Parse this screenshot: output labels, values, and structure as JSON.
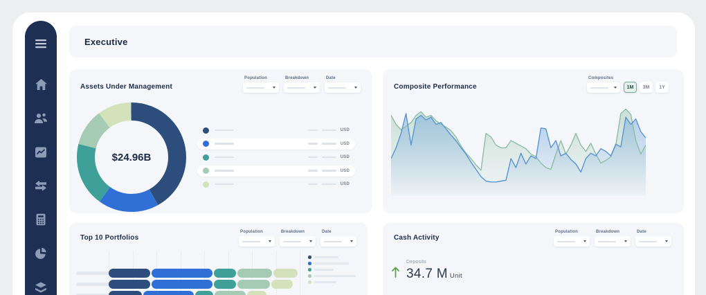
{
  "header": {
    "title": "Executive"
  },
  "palette": {
    "sidebar_bg": "#1d3054",
    "sidebar_icon": "#8c9cb6",
    "card_bg": "#f4f6f9",
    "title_text": "#1c2c49",
    "skeleton": "#dde2ea",
    "selected_chip_bg": "#e7f1ec",
    "selected_chip_border": "#76a996",
    "series_navy": "#2d4e7d",
    "series_blue": "#306fd6",
    "series_teal": "#3fa099",
    "series_sage": "#a5cbb5",
    "series_pale_green": "#d3e2ba",
    "line_blue": "#5795d2",
    "line_green": "#8cbda6",
    "deposit_green": "#57a744"
  },
  "sidebar": {
    "items": [
      {
        "icon": "menu"
      },
      {
        "icon": "home"
      },
      {
        "icon": "users"
      },
      {
        "icon": "report-chart"
      },
      {
        "icon": "transfer-arrows"
      },
      {
        "icon": "calculator"
      },
      {
        "icon": "pie-chart"
      },
      {
        "icon": "layers"
      }
    ]
  },
  "cards": {
    "aum": {
      "title": "Assets Under Management",
      "filters": [
        {
          "label": "Population"
        },
        {
          "label": "Breakdown"
        },
        {
          "label": "Date"
        }
      ],
      "legend": {
        "currency": "USD",
        "rows": [
          {
            "color": "#2d4e7d"
          },
          {
            "color": "#306fd6"
          },
          {
            "color": "#3fa099"
          },
          {
            "color": "#a5cbb5"
          },
          {
            "color": "#d3e2ba"
          }
        ]
      }
    },
    "composite": {
      "title": "Composite Performance",
      "filters": [
        {
          "label": "Composites"
        }
      ],
      "range_buttons": [
        {
          "label": "1M",
          "selected": true
        },
        {
          "label": "3M",
          "selected": false
        },
        {
          "label": "1Y",
          "selected": false
        }
      ]
    },
    "top10": {
      "title": "Top 10 Portfolios",
      "filters": [
        {
          "label": "Population"
        },
        {
          "label": "Breakdown"
        },
        {
          "label": "Date"
        }
      ],
      "legend_bar_widths": [
        35,
        50,
        28,
        60,
        32
      ]
    },
    "cash": {
      "title": "Cash Activity",
      "filters": [
        {
          "label": "Population"
        },
        {
          "label": "Breakdown"
        },
        {
          "label": "Date"
        }
      ],
      "metric": {
        "label": "Deposits",
        "value": "34.7 M",
        "unit": "Unit",
        "direction": "up"
      }
    }
  },
  "chart_data": [
    {
      "card": "assets_under_management",
      "type": "pie",
      "subtype": "donut",
      "center_label": "$24.96B",
      "values_are_estimated_percent": true,
      "slices": [
        {
          "name": "slice-1",
          "color": "#2d4e7d",
          "value": 42
        },
        {
          "name": "slice-2",
          "color": "#306fd6",
          "value": 18
        },
        {
          "name": "slice-3",
          "color": "#3fa099",
          "value": 19
        },
        {
          "name": "slice-4",
          "color": "#a5cbb5",
          "value": 11
        },
        {
          "name": "slice-5",
          "color": "#d3e2ba",
          "value": 10
        }
      ]
    },
    {
      "card": "composite_performance",
      "type": "area",
      "x_points": 52,
      "ylim": [
        0,
        100
      ],
      "grid": false,
      "legend": "none",
      "range_selected": "1M",
      "series": [
        {
          "name": "composite-series-green",
          "color": "#8cbda6",
          "fill": "#a9cdb9",
          "values": [
            88,
            78,
            72,
            76,
            80,
            88,
            92,
            86,
            88,
            82,
            78,
            75,
            71,
            64,
            54,
            46,
            40,
            33,
            27,
            68,
            64,
            55,
            52,
            52,
            60,
            57,
            54,
            51,
            45,
            42,
            35,
            30,
            28,
            45,
            60,
            45,
            55,
            68,
            55,
            48,
            57,
            45,
            35,
            38,
            42,
            55,
            90,
            95,
            89,
            60,
            45,
            55
          ]
        },
        {
          "name": "composite-series-blue",
          "color": "#5795d2",
          "fill": "#7daede",
          "values": [
            40,
            52,
            68,
            90,
            55,
            84,
            88,
            83,
            86,
            78,
            80,
            73,
            66,
            60,
            52,
            45,
            36,
            28,
            20,
            15,
            14,
            14,
            15,
            16,
            40,
            30,
            46,
            34,
            43,
            40,
            74,
            73,
            52,
            60,
            43,
            46,
            39,
            34,
            25,
            40,
            46,
            43,
            51,
            48,
            43,
            56,
            53,
            86,
            78,
            84,
            70,
            63
          ]
        }
      ]
    },
    {
      "card": "top_10_portfolios",
      "type": "bar",
      "orientation": "horizontal",
      "stacked": true,
      "visible_rows": 3,
      "values_are_estimated_percent": true,
      "colors": [
        "#2d4e7d",
        "#306fd6",
        "#3fa099",
        "#a5cbb5",
        "#d3e2ba"
      ],
      "rows": [
        {
          "segments": [
            22.4,
            32.7,
            12.7,
            18.8,
            13.3
          ]
        },
        {
          "segments": [
            22.4,
            32.7,
            12.7,
            17.5,
            12.2
          ]
        },
        {
          "segments": [
            18.2,
            27.3,
            10.3,
            17.0,
            11.0
          ]
        }
      ]
    }
  ]
}
